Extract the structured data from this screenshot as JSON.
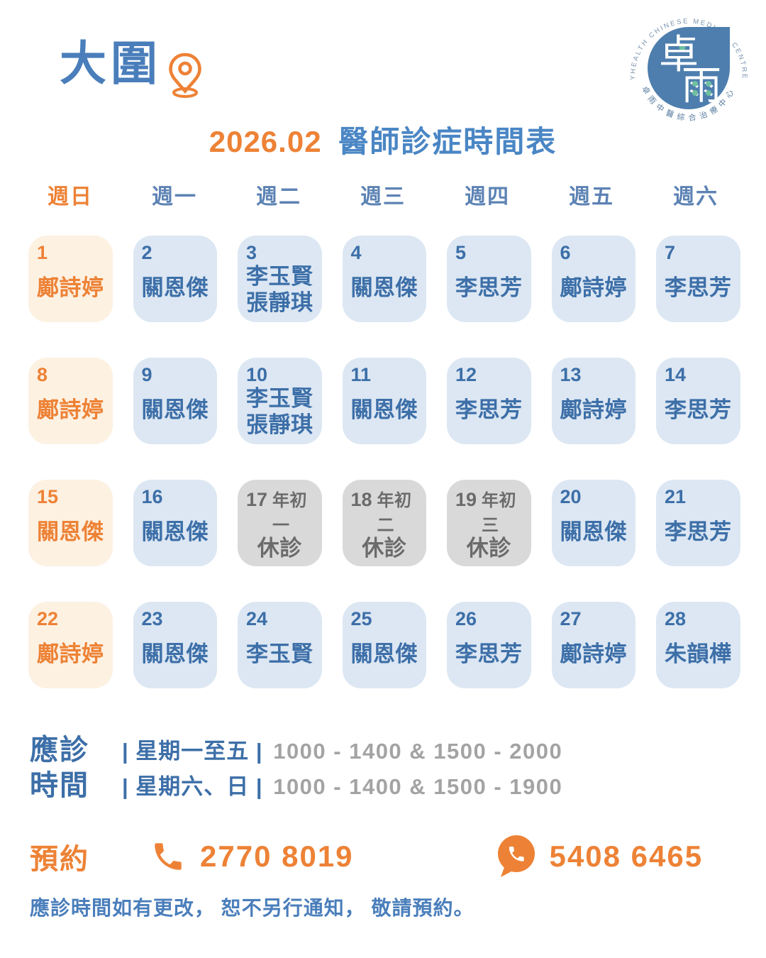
{
  "header": {
    "location": "大圍",
    "title_month": "2026.02",
    "title_text": "醫師診症時間表",
    "logo": {
      "arc_top": "YHEALTH CHINESE MEDICAL CENTRE",
      "arc_bottom": "卓雨中醫綜合治療中心",
      "char_top": "卓",
      "char_bottom": "雨"
    }
  },
  "calendar": {
    "weekdays": [
      "週日",
      "週一",
      "週二",
      "週三",
      "週四",
      "週五",
      "週六"
    ],
    "cells": [
      {
        "date": "1",
        "type": "sunday",
        "names": [
          "鄺詩婷"
        ]
      },
      {
        "date": "2",
        "type": "normal",
        "names": [
          "關恩傑"
        ]
      },
      {
        "date": "3",
        "type": "normal",
        "names": [
          "李玉賢",
          "張靜琪"
        ]
      },
      {
        "date": "4",
        "type": "normal",
        "names": [
          "關恩傑"
        ]
      },
      {
        "date": "5",
        "type": "normal",
        "names": [
          "李思芳"
        ]
      },
      {
        "date": "6",
        "type": "normal",
        "names": [
          "鄺詩婷"
        ]
      },
      {
        "date": "7",
        "type": "normal",
        "names": [
          "李思芳"
        ]
      },
      {
        "date": "8",
        "type": "sunday",
        "names": [
          "鄺詩婷"
        ]
      },
      {
        "date": "9",
        "type": "normal",
        "names": [
          "關恩傑"
        ]
      },
      {
        "date": "10",
        "type": "normal",
        "names": [
          "李玉賢",
          "張靜琪"
        ]
      },
      {
        "date": "11",
        "type": "normal",
        "names": [
          "關恩傑"
        ]
      },
      {
        "date": "12",
        "type": "normal",
        "names": [
          "李思芳"
        ]
      },
      {
        "date": "13",
        "type": "normal",
        "names": [
          "鄺詩婷"
        ]
      },
      {
        "date": "14",
        "type": "normal",
        "names": [
          "李思芳"
        ]
      },
      {
        "date": "15",
        "type": "sunday",
        "names": [
          "關恩傑"
        ]
      },
      {
        "date": "16",
        "type": "normal",
        "names": [
          "關恩傑"
        ]
      },
      {
        "date": "17",
        "type": "holiday",
        "holiday": "年初一",
        "closed": "休診"
      },
      {
        "date": "18",
        "type": "holiday",
        "holiday": "年初二",
        "closed": "休診"
      },
      {
        "date": "19",
        "type": "holiday",
        "holiday": "年初三",
        "closed": "休診"
      },
      {
        "date": "20",
        "type": "normal",
        "names": [
          "關恩傑"
        ]
      },
      {
        "date": "21",
        "type": "normal",
        "names": [
          "李思芳"
        ]
      },
      {
        "date": "22",
        "type": "sunday",
        "names": [
          "鄺詩婷"
        ]
      },
      {
        "date": "23",
        "type": "normal",
        "names": [
          "關恩傑"
        ]
      },
      {
        "date": "24",
        "type": "normal",
        "names": [
          "李玉賢"
        ]
      },
      {
        "date": "25",
        "type": "normal",
        "names": [
          "關恩傑"
        ]
      },
      {
        "date": "26",
        "type": "normal",
        "names": [
          "李思芳"
        ]
      },
      {
        "date": "27",
        "type": "normal",
        "names": [
          "鄺詩婷"
        ]
      },
      {
        "date": "28",
        "type": "normal",
        "names": [
          "朱韻樺"
        ]
      }
    ]
  },
  "hours": {
    "label_line1": "應診",
    "label_line2": "時間",
    "rows": [
      {
        "days": "| 星期一至五 |",
        "time": "1000 - 1400 & 1500 - 2000"
      },
      {
        "days": "| 星期六、日 |",
        "time": "1000 - 1400 & 1500 - 1900"
      }
    ]
  },
  "booking": {
    "label": "預約",
    "phone": "2770 8019",
    "whatsapp": "5408 6465"
  },
  "footer": {
    "note": "應診時間如有更改， 恕不另行通知， 敬請預約。"
  },
  "colors": {
    "orange": "#ED8236",
    "blue_heading": "#4A7EBB",
    "title_blue": "#4A86C4",
    "cell_text_blue": "#3D6FA8",
    "cell_blue_bg": "#DCE7F3",
    "cell_cream_bg": "#FDF1E2",
    "holiday_bg": "#D9D9D9",
    "holiday_text": "#6B6B6B",
    "time_gray": "#A3A3A3",
    "logo_blue": "#4D7EAE",
    "logo_teal": "#6FBFA0"
  }
}
